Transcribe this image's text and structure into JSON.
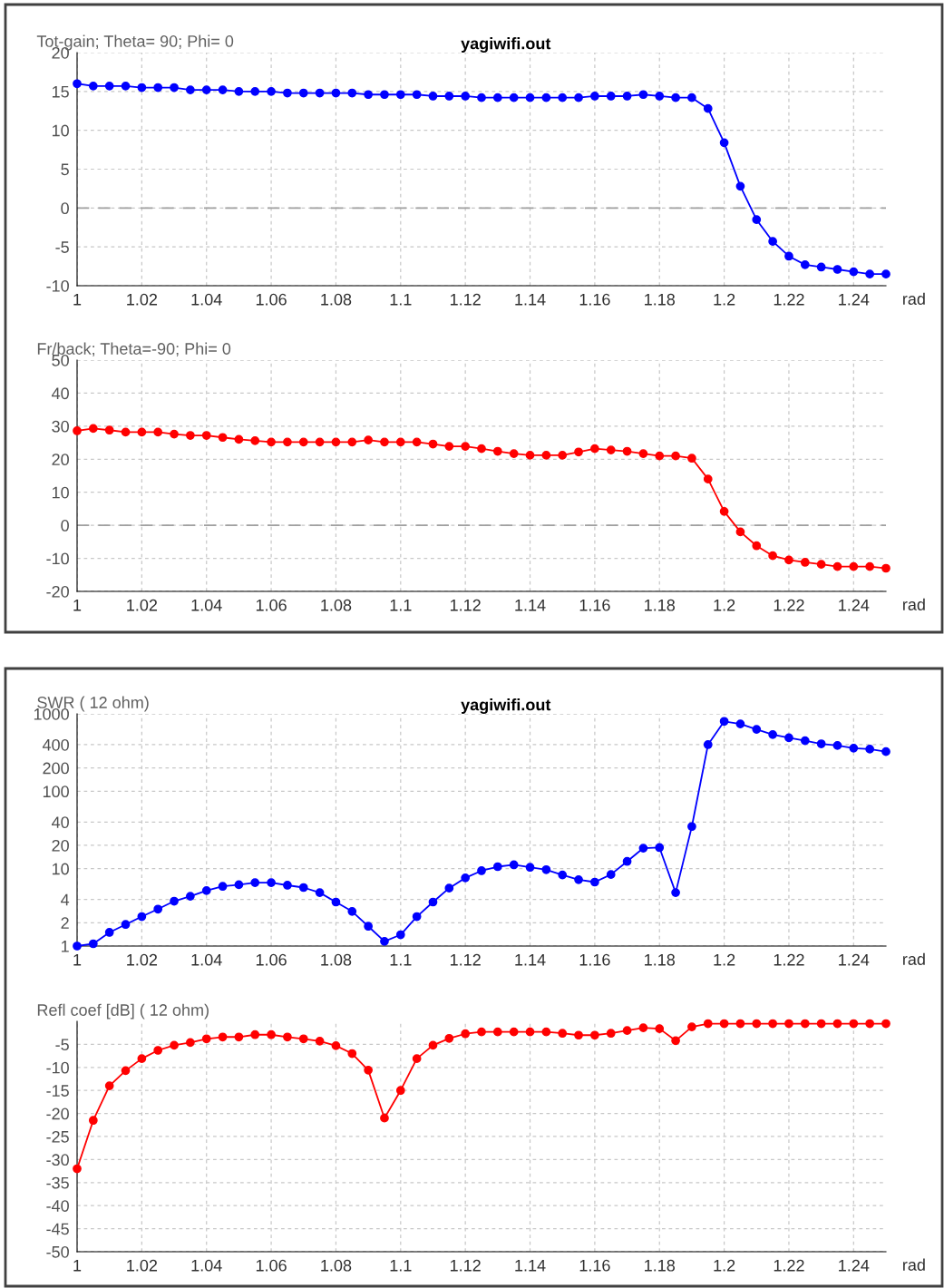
{
  "chart_data": [
    {
      "type": "line",
      "title": "yagiwifi.out",
      "ylabel": "Tot-gain; Theta= 90; Phi= 0",
      "xlabel": "rad",
      "xlim": [
        1,
        1.25
      ],
      "xticks": [
        1,
        1.02,
        1.04,
        1.06,
        1.08,
        1.1,
        1.12,
        1.14,
        1.16,
        1.18,
        1.2,
        1.22,
        1.24
      ],
      "ylim": [
        -10,
        20
      ],
      "yticks": [
        -10,
        -5,
        0,
        5,
        10,
        15,
        20
      ],
      "grid": true,
      "marker": "circle",
      "line_style": "solid",
      "ref_lines": [
        {
          "axis": "y",
          "value": 0,
          "color": "#a0a0a0",
          "line_style": "dashed"
        }
      ],
      "x": [
        1,
        1.005,
        1.01,
        1.015,
        1.02,
        1.025,
        1.03,
        1.035,
        1.04,
        1.045,
        1.05,
        1.055,
        1.06,
        1.065,
        1.07,
        1.075,
        1.08,
        1.085,
        1.09,
        1.095,
        1.1,
        1.105,
        1.11,
        1.115,
        1.12,
        1.125,
        1.13,
        1.135,
        1.14,
        1.145,
        1.15,
        1.155,
        1.16,
        1.165,
        1.17,
        1.175,
        1.18,
        1.185,
        1.19,
        1.195,
        1.2,
        1.205,
        1.21,
        1.215,
        1.22,
        1.225,
        1.23,
        1.235,
        1.24,
        1.245,
        1.25
      ],
      "series": [
        {
          "color": "#0000ff",
          "values": [
            16.0,
            15.7,
            15.7,
            15.7,
            15.5,
            15.5,
            15.5,
            15.2,
            15.2,
            15.2,
            15.0,
            15.0,
            15.0,
            14.8,
            14.8,
            14.8,
            14.8,
            14.8,
            14.6,
            14.6,
            14.6,
            14.6,
            14.4,
            14.4,
            14.4,
            14.2,
            14.2,
            14.2,
            14.2,
            14.2,
            14.2,
            14.2,
            14.4,
            14.4,
            14.4,
            14.6,
            14.4,
            14.2,
            14.2,
            12.8,
            8.4,
            2.8,
            -1.5,
            -4.3,
            -6.2,
            -7.3,
            -7.6,
            -7.9,
            -8.2,
            -8.5,
            -8.5
          ]
        }
      ]
    },
    {
      "type": "line",
      "ylabel": "Fr/back; Theta=-90; Phi= 0",
      "xlabel": "rad",
      "xlim": [
        1,
        1.25
      ],
      "xticks": [
        1,
        1.02,
        1.04,
        1.06,
        1.08,
        1.1,
        1.12,
        1.14,
        1.16,
        1.18,
        1.2,
        1.22,
        1.24
      ],
      "ylim": [
        -20,
        50
      ],
      "yticks": [
        -20,
        -10,
        0,
        10,
        20,
        30,
        40,
        50
      ],
      "grid": true,
      "marker": "circle",
      "line_style": "solid",
      "ref_lines": [
        {
          "axis": "y",
          "value": 0,
          "color": "#a0a0a0",
          "line_style": "dashed"
        }
      ],
      "x": [
        1,
        1.005,
        1.01,
        1.015,
        1.02,
        1.025,
        1.03,
        1.035,
        1.04,
        1.045,
        1.05,
        1.055,
        1.06,
        1.065,
        1.07,
        1.075,
        1.08,
        1.085,
        1.09,
        1.095,
        1.1,
        1.105,
        1.11,
        1.115,
        1.12,
        1.125,
        1.13,
        1.135,
        1.14,
        1.145,
        1.15,
        1.155,
        1.16,
        1.165,
        1.17,
        1.175,
        1.18,
        1.185,
        1.19,
        1.195,
        1.2,
        1.205,
        1.21,
        1.215,
        1.22,
        1.225,
        1.23,
        1.235,
        1.24,
        1.245,
        1.25
      ],
      "series": [
        {
          "color": "#ff0000",
          "values": [
            28.6,
            29.3,
            28.8,
            28.2,
            28.2,
            28.2,
            27.6,
            27.2,
            27.2,
            26.6,
            26.0,
            25.6,
            25.2,
            25.2,
            25.2,
            25.2,
            25.2,
            25.2,
            25.8,
            25.2,
            25.2,
            25.2,
            24.6,
            23.9,
            23.9,
            23.2,
            22.4,
            21.7,
            21.2,
            21.2,
            21.2,
            22.2,
            23.2,
            22.8,
            22.4,
            21.7,
            21.0,
            21.0,
            20.3,
            14.0,
            4.2,
            -2.0,
            -6.2,
            -9.2,
            -10.5,
            -11.2,
            -11.8,
            -12.5,
            -12.5,
            -12.5,
            -13.0
          ]
        }
      ]
    },
    {
      "type": "line",
      "title": "yagiwifi.out",
      "ylabel": "SWR ( 12 ohm)",
      "xlabel": "rad",
      "log": "y",
      "xlim": [
        1,
        1.25
      ],
      "xticks": [
        1,
        1.02,
        1.04,
        1.06,
        1.08,
        1.1,
        1.12,
        1.14,
        1.16,
        1.18,
        1.2,
        1.22,
        1.24
      ],
      "ylim": [
        1,
        1000
      ],
      "yticks": [
        1,
        2,
        4,
        10,
        20,
        40,
        100,
        200,
        400,
        1000
      ],
      "grid": true,
      "marker": "circle",
      "line_style": "solid",
      "x": [
        1,
        1.005,
        1.01,
        1.015,
        1.02,
        1.025,
        1.03,
        1.035,
        1.04,
        1.045,
        1.05,
        1.055,
        1.06,
        1.065,
        1.07,
        1.075,
        1.08,
        1.085,
        1.09,
        1.095,
        1.1,
        1.105,
        1.11,
        1.115,
        1.12,
        1.125,
        1.13,
        1.135,
        1.14,
        1.145,
        1.15,
        1.155,
        1.16,
        1.165,
        1.17,
        1.175,
        1.18,
        1.185,
        1.19,
        1.195,
        1.2,
        1.205,
        1.21,
        1.215,
        1.22,
        1.225,
        1.23,
        1.235,
        1.24,
        1.245,
        1.25
      ],
      "series": [
        {
          "color": "#0000ff",
          "values": [
            1.0,
            1.07,
            1.5,
            1.9,
            2.4,
            3.0,
            3.8,
            4.4,
            5.2,
            5.9,
            6.2,
            6.6,
            6.6,
            6.1,
            5.7,
            4.9,
            3.7,
            2.8,
            1.8,
            1.15,
            1.4,
            2.4,
            3.7,
            5.6,
            7.6,
            9.4,
            10.6,
            11.2,
            10.4,
            9.7,
            8.3,
            7.2,
            6.7,
            8.4,
            12.4,
            18.4,
            18.7,
            4.9,
            35,
            400,
            800,
            740,
            630,
            540,
            490,
            450,
            410,
            390,
            360,
            350,
            325
          ]
        }
      ]
    },
    {
      "type": "line",
      "ylabel": "Refl coef [dB] ( 12 ohm)",
      "xlabel": "rad",
      "xlim": [
        1,
        1.25
      ],
      "xticks": [
        1,
        1.02,
        1.04,
        1.06,
        1.08,
        1.1,
        1.12,
        1.14,
        1.16,
        1.18,
        1.2,
        1.22,
        1.24
      ],
      "ylim": [
        -50,
        0
      ],
      "yticks": [
        -50,
        -45,
        -40,
        -35,
        -30,
        -25,
        -20,
        -15,
        -10,
        -5
      ],
      "grid": true,
      "marker": "circle",
      "line_style": "solid",
      "x": [
        1,
        1.005,
        1.01,
        1.015,
        1.02,
        1.025,
        1.03,
        1.035,
        1.04,
        1.045,
        1.05,
        1.055,
        1.06,
        1.065,
        1.07,
        1.075,
        1.08,
        1.085,
        1.09,
        1.095,
        1.1,
        1.105,
        1.11,
        1.115,
        1.12,
        1.125,
        1.13,
        1.135,
        1.14,
        1.145,
        1.15,
        1.155,
        1.16,
        1.165,
        1.17,
        1.175,
        1.18,
        1.185,
        1.19,
        1.195,
        1.2,
        1.205,
        1.21,
        1.215,
        1.22,
        1.225,
        1.23,
        1.235,
        1.24,
        1.245,
        1.25
      ],
      "series": [
        {
          "color": "#ff0000",
          "values": [
            -32,
            -21.5,
            -14,
            -10.7,
            -8.1,
            -6.3,
            -5.2,
            -4.6,
            -3.8,
            -3.4,
            -3.4,
            -2.9,
            -2.9,
            -3.4,
            -3.8,
            -4.3,
            -5.3,
            -7.0,
            -10.6,
            -21,
            -15,
            -8.1,
            -5.2,
            -3.7,
            -2.7,
            -2.3,
            -2.3,
            -2.3,
            -2.3,
            -2.3,
            -2.6,
            -3.0,
            -3.0,
            -2.6,
            -2.0,
            -1.4,
            -1.6,
            -4.2,
            -1.2,
            -0.5,
            -0.5,
            -0.5,
            -0.5,
            -0.5,
            -0.5,
            -0.5,
            -0.5,
            -0.5,
            -0.5,
            -0.5,
            -0.5
          ]
        }
      ]
    }
  ]
}
